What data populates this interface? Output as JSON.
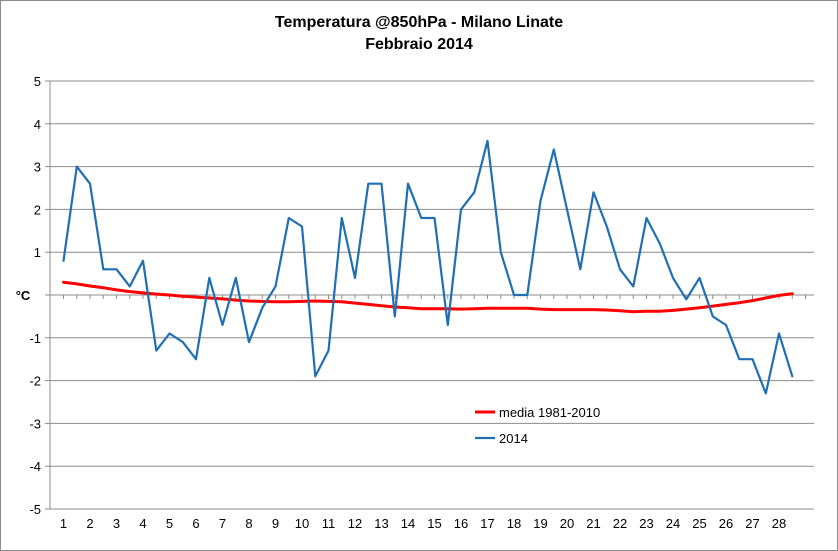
{
  "chart_data": {
    "type": "line",
    "title": [
      "Temperatura @850hPa - Milano Linate",
      "Febbraio 2014"
    ],
    "ylabel": "°C",
    "xlabel": "",
    "ylim": [
      -5,
      5
    ],
    "yticks": [
      5,
      4,
      3,
      2,
      1,
      -1,
      -2,
      -3,
      -4,
      -5
    ],
    "xlim": [
      1,
      29
    ],
    "xticks": [
      1,
      2,
      3,
      4,
      5,
      6,
      7,
      8,
      9,
      10,
      11,
      12,
      13,
      14,
      15,
      16,
      17,
      18,
      19,
      20,
      21,
      22,
      23,
      24,
      25,
      26,
      27,
      28
    ],
    "grid": "horizontal",
    "legend_position": "bottom-center",
    "series": [
      {
        "name": "media 1981-2010",
        "color": "#ff0000",
        "x": [
          1,
          1.5,
          2,
          2.5,
          3,
          3.5,
          4,
          4.5,
          5,
          5.5,
          6,
          6.5,
          7,
          7.5,
          8,
          8.5,
          9,
          9.5,
          10,
          10.5,
          11,
          11.5,
          12,
          12.5,
          13,
          13.5,
          14,
          14.5,
          15,
          15.5,
          16,
          16.5,
          17,
          17.5,
          18,
          18.5,
          19,
          19.5,
          20,
          20.5,
          21,
          21.5,
          22,
          22.5,
          23,
          23.5,
          24,
          24.5,
          25,
          25.5,
          26,
          26.5,
          27,
          27.5,
          28,
          28.5
        ],
        "values": [
          0.3,
          0.26,
          0.21,
          0.17,
          0.12,
          0.08,
          0.05,
          0.02,
          0.0,
          -0.03,
          -0.05,
          -0.07,
          -0.09,
          -0.12,
          -0.14,
          -0.15,
          -0.16,
          -0.16,
          -0.15,
          -0.14,
          -0.15,
          -0.16,
          -0.19,
          -0.22,
          -0.25,
          -0.28,
          -0.3,
          -0.32,
          -0.32,
          -0.32,
          -0.33,
          -0.32,
          -0.31,
          -0.31,
          -0.31,
          -0.31,
          -0.33,
          -0.34,
          -0.34,
          -0.34,
          -0.34,
          -0.35,
          -0.37,
          -0.39,
          -0.38,
          -0.38,
          -0.36,
          -0.33,
          -0.3,
          -0.26,
          -0.22,
          -0.18,
          -0.13,
          -0.07,
          -0.01,
          0.03
        ]
      },
      {
        "name": "2014",
        "color": "#1f6fb2",
        "x": [
          1,
          1.5,
          2,
          2.5,
          3,
          3.5,
          4,
          4.5,
          5,
          5.5,
          6,
          6.5,
          7,
          7.5,
          8,
          8.5,
          9,
          9.5,
          10,
          10.5,
          11,
          11.5,
          12,
          12.5,
          13,
          13.5,
          14,
          14.5,
          15,
          15.5,
          16,
          16.5,
          17,
          17.5,
          18,
          18.5,
          19,
          19.5,
          20,
          20.5,
          21,
          21.5,
          22,
          22.5,
          23,
          23.5,
          24,
          24.5,
          25,
          25.5,
          26,
          26.5,
          27,
          27.5,
          28,
          28.5
        ],
        "values": [
          0.8,
          3.0,
          2.6,
          0.6,
          0.6,
          0.2,
          0.8,
          -1.3,
          -0.9,
          -1.1,
          -1.5,
          0.4,
          -0.7,
          0.4,
          -1.1,
          -0.3,
          0.2,
          1.8,
          1.6,
          -1.9,
          -1.3,
          1.8,
          0.4,
          2.6,
          2.6,
          -0.5,
          2.6,
          1.8,
          1.8,
          -0.7,
          2.0,
          2.4,
          3.6,
          1.0,
          0.0,
          0.0,
          2.2,
          3.4,
          2.0,
          0.6,
          2.4,
          1.6,
          0.6,
          0.2,
          1.8,
          1.2,
          0.4,
          -0.1,
          0.4,
          -0.5,
          -0.7,
          -1.5,
          -1.5,
          -2.3,
          -0.9,
          -1.9
        ]
      }
    ]
  }
}
